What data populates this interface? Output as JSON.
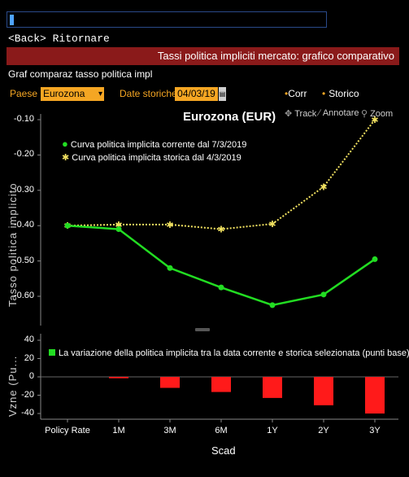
{
  "nav": {
    "back_label": "<Back> Ritornare"
  },
  "header": {
    "title": "Tassi politica impliciti mercato: grafico comparativo"
  },
  "page": {
    "subtitle": "Graf comparaz tasso politica impl"
  },
  "controls": {
    "paese_label": "Paese",
    "paese_value": "Eurozona",
    "date_label": "Date storiche",
    "date_value": "04/03/19",
    "corr_label": "Corr",
    "storico_label": "Storico",
    "track_label": "Track",
    "annotare_label": "Annotare",
    "zoom_label": "Zoom"
  },
  "colors": {
    "current": "#22dd22",
    "historical": "#f0e060",
    "bars": "#ff1a1a",
    "orange": "#f5a623",
    "titlebar": "#8a1a1a"
  },
  "chart_data": [
    {
      "type": "line",
      "title": "Eurozona (EUR)",
      "ylabel": "Tasso politica implicito",
      "categories": [
        "Policy Rate",
        "1M",
        "3M",
        "6M",
        "1Y",
        "2Y",
        "3Y"
      ],
      "ylim": [
        -0.65,
        -0.1
      ],
      "yticks": [
        "-0.10",
        "-0.20",
        "-0.30",
        "-0.40",
        "-0.50",
        "-0.60"
      ],
      "grid": false,
      "legend_position": "top-left",
      "series": [
        {
          "name": "Curva politica implicita corrente dal 7/3/2019",
          "values": [
            -0.4,
            -0.41,
            -0.52,
            -0.575,
            -0.625,
            -0.595,
            -0.495
          ]
        },
        {
          "name": "Curva politica implicita storica dal 4/3/2019",
          "values": [
            -0.4,
            -0.397,
            -0.397,
            -0.41,
            -0.395,
            -0.29,
            -0.1
          ]
        }
      ]
    },
    {
      "type": "bar",
      "ylabel": "Vzne (Pu...",
      "xlabel": "Scad",
      "categories": [
        "Policy Rate",
        "1M",
        "3M",
        "6M",
        "1Y",
        "2Y",
        "3Y"
      ],
      "ylim": [
        -45,
        45
      ],
      "yticks": [
        "40",
        "20",
        "0",
        "-20",
        "-40"
      ],
      "series": [
        {
          "name": "La variazione della politica implicita tra la data corrente e storica selezionata (punti base)",
          "values": [
            0,
            -1.5,
            -12,
            -16.5,
            -23,
            -31,
            -40
          ]
        }
      ]
    }
  ]
}
